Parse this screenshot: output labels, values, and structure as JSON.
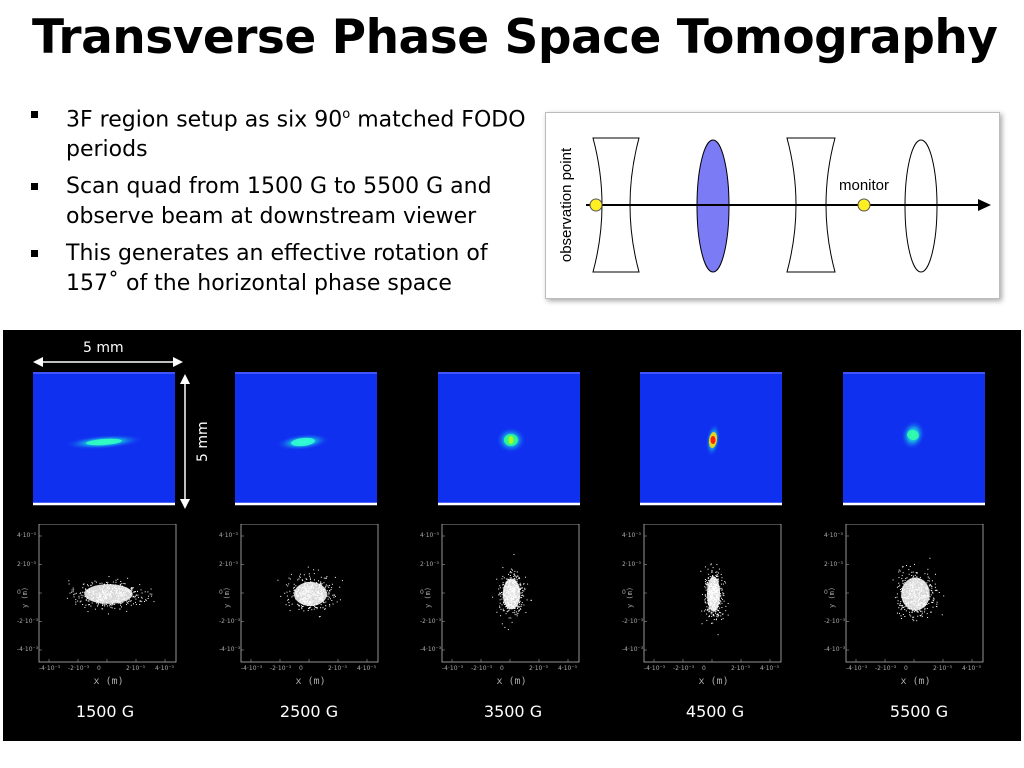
{
  "title": "Transverse Phase Space Tomography",
  "bullets": [
    {
      "text": "3F region setup as six 90",
      "sup": "o",
      "text_after": " matched FODO periods"
    },
    {
      "text": "Scan quad from 1500 G to 5500 G and observe beam at downstream viewer"
    },
    {
      "text": "This generates an effective rotation of 157˚ of the horizontal phase space"
    }
  ],
  "diagram": {
    "observation_label": "observation point",
    "monitor_label": "monitor",
    "focusing_lens_color": "#7b7bf5",
    "marker_color": "#ffee22"
  },
  "panel": {
    "width_label": "5 mm",
    "height_label": "5 mm",
    "scatter_axis_label": "x (m)",
    "scatter_y_label": "y (m)",
    "scatter_ticks": [
      "-4·10⁻³",
      "-2·10⁻³",
      "0",
      "2·10⁻³",
      "4·10⁻³"
    ],
    "scans": [
      {
        "label": "1500 G"
      },
      {
        "label": "2500 G"
      },
      {
        "label": "3500 G"
      },
      {
        "label": "4500 G"
      },
      {
        "label": "5500 G"
      }
    ]
  }
}
